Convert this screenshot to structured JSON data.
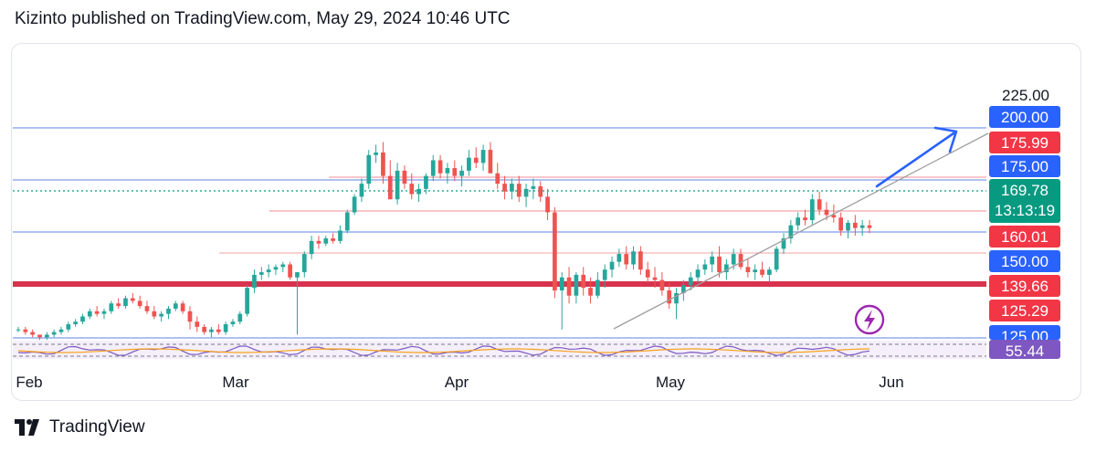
{
  "header": {
    "text": "Kizinto published on TradingView.com, May 29, 2024 10:46 UTC"
  },
  "footer": {
    "brand": "TradingView"
  },
  "colors": {
    "up": "#26a69a",
    "down": "#ef5350",
    "blue_line": "#7e9ce8",
    "red_line": "#f2a4ab",
    "thick_red": "#d8334e",
    "tag_blue": "#2962ff",
    "tag_red": "#f23645",
    "tag_green": "#089981",
    "tag_purple": "#7e57c2",
    "dotted": "#089981",
    "trendline": "#9e9e9e",
    "arrow": "#2962ff"
  },
  "chart_data": {
    "type": "candlestick",
    "x_labels": [
      "Feb",
      "Mar",
      "Apr",
      "May",
      "Jun"
    ],
    "price_axis_top_label": "225.00",
    "current_price": 169.78,
    "countdown": "13:13:19",
    "horizontal_levels": [
      {
        "label": "200.00",
        "value": 200.0,
        "kind": "blue"
      },
      {
        "label": "175.99",
        "value": 175.99,
        "kind": "red"
      },
      {
        "label": "175.00",
        "value": 175.0,
        "kind": "blue"
      },
      {
        "label": "160.01",
        "value": 160.01,
        "kind": "red"
      },
      {
        "label": "150.00",
        "value": 150.0,
        "kind": "blue"
      },
      {
        "label": "139.66",
        "value": 139.66,
        "kind": "red_thick"
      },
      {
        "label": "125.29",
        "value": 125.29,
        "kind": "red"
      },
      {
        "label": "125.00",
        "value": 125.0,
        "kind": "blue"
      }
    ],
    "rsi_value": "55.44",
    "candles": [
      [
        130,
        131,
        129,
        130
      ],
      [
        130,
        131,
        128,
        129
      ],
      [
        129,
        130,
        127,
        128
      ],
      [
        128,
        128,
        126,
        127
      ],
      [
        127,
        129,
        126,
        128
      ],
      [
        128,
        130,
        127,
        129
      ],
      [
        129,
        131,
        128,
        130
      ],
      [
        130,
        133,
        129,
        132
      ],
      [
        132,
        134,
        131,
        133
      ],
      [
        133,
        136,
        132,
        135
      ],
      [
        135,
        138,
        134,
        137
      ],
      [
        137,
        139,
        135,
        136
      ],
      [
        136,
        138,
        134,
        137
      ],
      [
        137,
        141,
        136,
        140
      ],
      [
        140,
        142,
        138,
        139
      ],
      [
        139,
        143,
        138,
        142
      ],
      [
        142,
        144,
        140,
        141
      ],
      [
        141,
        143,
        138,
        139
      ],
      [
        139,
        141,
        136,
        137
      ],
      [
        137,
        139,
        134,
        135
      ],
      [
        135,
        137,
        133,
        136
      ],
      [
        136,
        139,
        134,
        138
      ],
      [
        138,
        141,
        137,
        140
      ],
      [
        140,
        141,
        136,
        137
      ],
      [
        137,
        139,
        130,
        133
      ],
      [
        133,
        135,
        129,
        131
      ],
      [
        131,
        132,
        128,
        129
      ],
      [
        129,
        131,
        127,
        130
      ],
      [
        130,
        132,
        128,
        129
      ],
      [
        129,
        133,
        128,
        132
      ],
      [
        132,
        134,
        131,
        133
      ],
      [
        133,
        137,
        132,
        136
      ],
      [
        136,
        147,
        135,
        146
      ],
      [
        146,
        153,
        144,
        151
      ],
      [
        151,
        154,
        149,
        152
      ],
      [
        152,
        155,
        150,
        153
      ],
      [
        153,
        155,
        151,
        154
      ],
      [
        154,
        156,
        152,
        155
      ],
      [
        155,
        156,
        149,
        150
      ],
      [
        150,
        152,
        128,
        152
      ],
      [
        152,
        160,
        150,
        159
      ],
      [
        159,
        166,
        157,
        164
      ],
      [
        164,
        166,
        161,
        163
      ],
      [
        163,
        166,
        162,
        165
      ],
      [
        165,
        167,
        163,
        164
      ],
      [
        164,
        170,
        163,
        168
      ],
      [
        168,
        176,
        167,
        175
      ],
      [
        175,
        182,
        174,
        181
      ],
      [
        181,
        188,
        179,
        186
      ],
      [
        186,
        199,
        184,
        197
      ],
      [
        197,
        201,
        194,
        198
      ],
      [
        198,
        202,
        186,
        189
      ],
      [
        189,
        195,
        180,
        180
      ],
      [
        180,
        194,
        178,
        191
      ],
      [
        191,
        193,
        184,
        186
      ],
      [
        186,
        190,
        180,
        182
      ],
      [
        182,
        186,
        179,
        184
      ],
      [
        184,
        190,
        182,
        189
      ],
      [
        189,
        197,
        187,
        195
      ],
      [
        195,
        197,
        188,
        190
      ],
      [
        190,
        194,
        186,
        192
      ],
      [
        192,
        195,
        187,
        189
      ],
      [
        189,
        193,
        185,
        191
      ],
      [
        191,
        199,
        189,
        196
      ],
      [
        196,
        200,
        192,
        194
      ],
      [
        194,
        201,
        191,
        199
      ],
      [
        199,
        202,
        190,
        190
      ],
      [
        190,
        194,
        184,
        186
      ],
      [
        186,
        189,
        180,
        183
      ],
      [
        183,
        188,
        180,
        186
      ],
      [
        186,
        189,
        179,
        181
      ],
      [
        181,
        186,
        177,
        184
      ],
      [
        184,
        188,
        180,
        185
      ],
      [
        185,
        187,
        179,
        181
      ],
      [
        181,
        184,
        172,
        175
      ],
      [
        175,
        177,
        142,
        145
      ],
      [
        145,
        152,
        130,
        150
      ],
      [
        150,
        154,
        140,
        143
      ],
      [
        143,
        152,
        140,
        151
      ],
      [
        151,
        154,
        143,
        146
      ],
      [
        146,
        150,
        140,
        143
      ],
      [
        143,
        152,
        142,
        149
      ],
      [
        149,
        155,
        146,
        153
      ],
      [
        153,
        158,
        150,
        156
      ],
      [
        156,
        161,
        154,
        159
      ],
      [
        159,
        162,
        153,
        155
      ],
      [
        155,
        162,
        153,
        160
      ],
      [
        160,
        162,
        151,
        153
      ],
      [
        153,
        156,
        148,
        150
      ],
      [
        150,
        154,
        146,
        149
      ],
      [
        149,
        152,
        143,
        145
      ],
      [
        145,
        148,
        138,
        140
      ],
      [
        140,
        146,
        134,
        144
      ],
      [
        144,
        149,
        141,
        147
      ],
      [
        147,
        152,
        145,
        150
      ],
      [
        150,
        155,
        148,
        153
      ],
      [
        153,
        157,
        151,
        155
      ],
      [
        155,
        160,
        152,
        158
      ],
      [
        158,
        162,
        150,
        152
      ],
      [
        152,
        157,
        149,
        155
      ],
      [
        155,
        161,
        153,
        159
      ],
      [
        159,
        161,
        153,
        154
      ],
      [
        154,
        157,
        150,
        152
      ],
      [
        152,
        155,
        149,
        153
      ],
      [
        153,
        156,
        150,
        151
      ],
      [
        151,
        154,
        148,
        153
      ],
      [
        153,
        162,
        152,
        161
      ],
      [
        161,
        167,
        159,
        165
      ],
      [
        165,
        172,
        163,
        170
      ],
      [
        170,
        175,
        168,
        173
      ],
      [
        173,
        176,
        170,
        172
      ],
      [
        172,
        182,
        170,
        180
      ],
      [
        180,
        183,
        174,
        176
      ],
      [
        176,
        179,
        172,
        174
      ],
      [
        174,
        178,
        171,
        173
      ],
      [
        173,
        175,
        166,
        168
      ],
      [
        168,
        172,
        165,
        171
      ],
      [
        171,
        174,
        166,
        169
      ],
      [
        169,
        172,
        166,
        170
      ],
      [
        170,
        172,
        167,
        169
      ]
    ]
  }
}
